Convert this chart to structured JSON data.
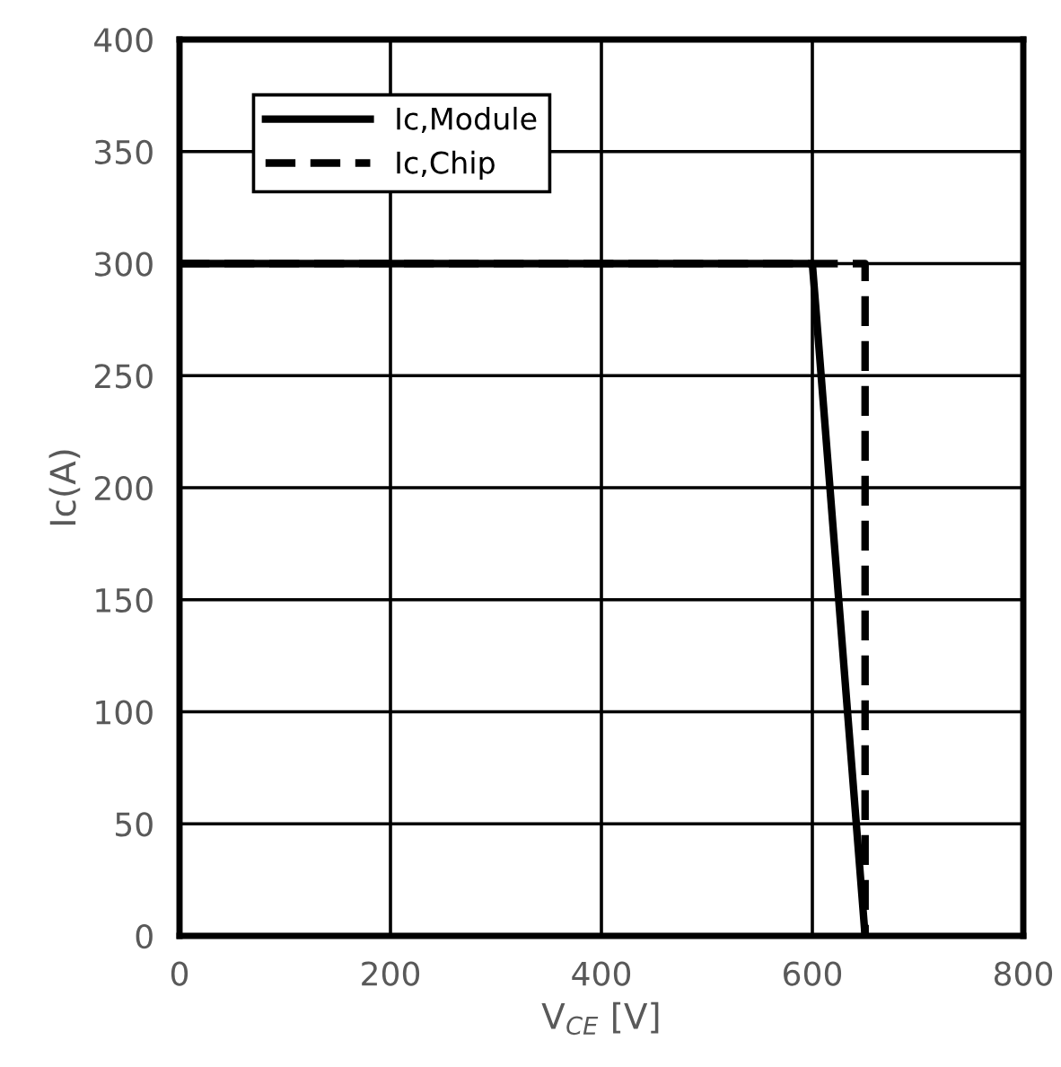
{
  "chart_data": {
    "type": "line",
    "xlabel": "V$_{CE}$ [V]",
    "ylabel": "Ic(A)",
    "xlim": [
      0,
      800
    ],
    "xticks": [
      0,
      200,
      400,
      600,
      800
    ],
    "ylim": [
      0,
      400
    ],
    "yticks": [
      0,
      50,
      100,
      150,
      200,
      250,
      300,
      350,
      400
    ],
    "grid": true,
    "legend": "top left",
    "marker": "none",
    "series": [
      {
        "name": "Ic,Module",
        "color": "#000000",
        "x": [
          0,
          600,
          650
        ],
        "values": [
          300,
          300,
          0
        ],
        "line_style": "solid"
      },
      {
        "name": "Ic,Chip",
        "color": "#000000",
        "x": [
          0,
          650,
          650
        ],
        "values": [
          300,
          300,
          0
        ],
        "line_style": "dashed"
      }
    ]
  }
}
